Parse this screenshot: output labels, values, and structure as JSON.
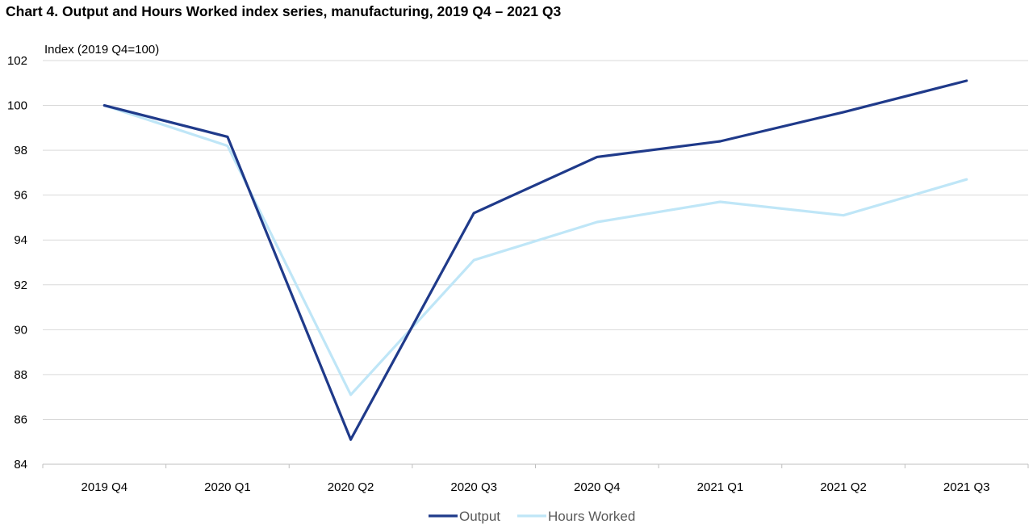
{
  "chart_data": {
    "type": "line",
    "title": "Chart 4.  Output and Hours Worked index series, manufacturing, 2019 Q4 – 2021 Q3",
    "ylabel": "Index (2019 Q4=100)",
    "xlabel": "",
    "categories": [
      "2019 Q4",
      "2020 Q1",
      "2020 Q2",
      "2020 Q3",
      "2020 Q4",
      "2021 Q1",
      "2021 Q2",
      "2021 Q3"
    ],
    "ylim": [
      84,
      102
    ],
    "yticks": [
      84,
      86,
      88,
      90,
      92,
      94,
      96,
      98,
      100,
      102
    ],
    "grid": true,
    "legend_position": "bottom",
    "series": [
      {
        "name": "Output",
        "color": "#1f3a8a",
        "values": [
          100,
          98.6,
          85.1,
          95.2,
          97.7,
          98.4,
          99.7,
          101.1
        ]
      },
      {
        "name": "Hours Worked",
        "color": "#bfe6f7",
        "values": [
          100,
          98.2,
          87.1,
          93.1,
          94.8,
          95.7,
          95.1,
          96.7
        ]
      }
    ]
  }
}
